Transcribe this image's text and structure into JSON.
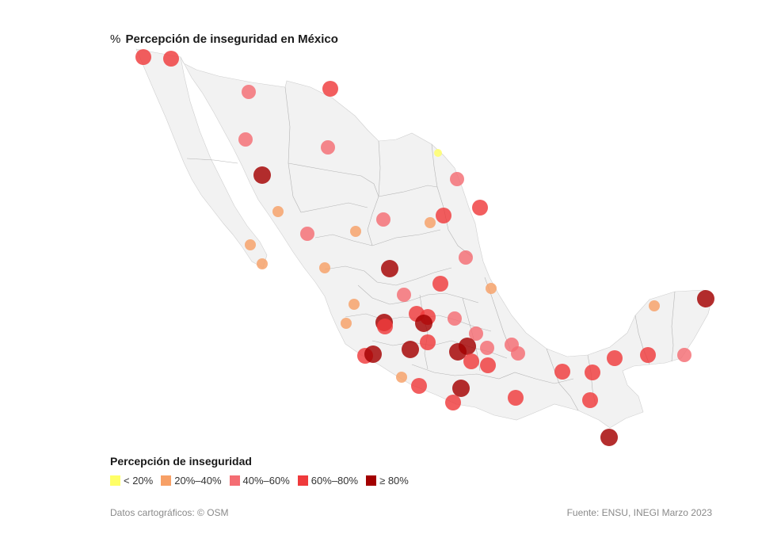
{
  "title": {
    "prefix": "%",
    "text": "Percepción de inseguridad en México"
  },
  "legend": {
    "title": "Percepción de inseguridad",
    "items": [
      {
        "label": "< 20%",
        "color": "#ffff66"
      },
      {
        "label": "20%–40%",
        "color": "#f7a066"
      },
      {
        "label": "40%–60%",
        "color": "#f46d73"
      },
      {
        "label": "60%–80%",
        "color": "#ef3a3c"
      },
      {
        "label": "≥ 80%",
        "color": "#a30000"
      }
    ]
  },
  "colors": {
    "land": "#f2f2f2",
    "border": "#b5b5b5"
  },
  "footer": {
    "attribution": "Datos cartográficos: © OSM",
    "source": "Fuente: ENSU, INEGI Marzo 2023"
  }
}
